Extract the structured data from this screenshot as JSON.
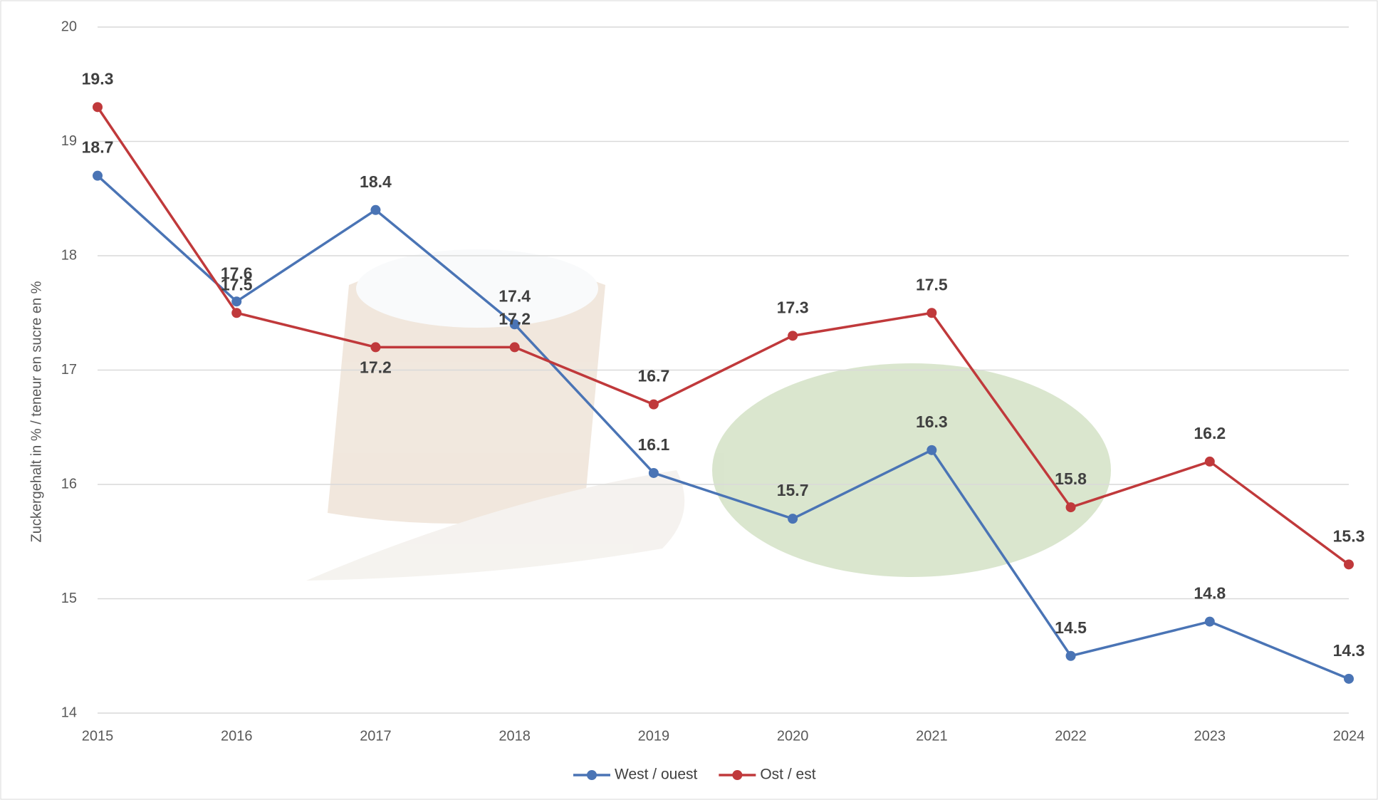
{
  "chart_data": {
    "type": "line",
    "y_label": "Zuckergehalt in % / teneur en sucre en %",
    "categories": [
      "2015",
      "2016",
      "2017",
      "2018",
      "2019",
      "2020",
      "2021",
      "2022",
      "2023",
      "2024"
    ],
    "series": [
      {
        "name": "West / ouest",
        "color": "#4a74b5",
        "values": [
          18.7,
          17.6,
          18.4,
          17.4,
          16.1,
          15.7,
          16.3,
          14.5,
          14.8,
          14.3
        ]
      },
      {
        "name": "Ost / est",
        "color": "#c0393b",
        "values": [
          19.3,
          17.5,
          17.2,
          17.2,
          16.7,
          17.3,
          17.5,
          15.8,
          16.2,
          15.3
        ]
      }
    ],
    "ylim": [
      14,
      20
    ],
    "yticks": [
      14,
      15,
      16,
      17,
      18,
      19,
      20
    ],
    "grid": true,
    "legend": "bottom"
  }
}
